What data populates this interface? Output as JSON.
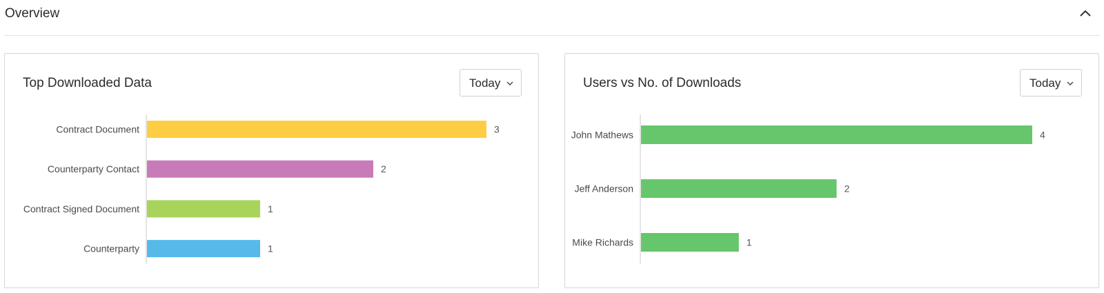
{
  "section": {
    "title": "Overview",
    "collapse_icon": "chevron-up-icon"
  },
  "cards": [
    {
      "title": "Top Downloaded Data",
      "period": "Today",
      "chart_data": {
        "type": "bar",
        "orientation": "horizontal",
        "categories": [
          "Contract Document",
          "Counterparty Contact",
          "Contract Signed Document",
          "Counterparty"
        ],
        "values": [
          3,
          2,
          1,
          1
        ],
        "colors": [
          "#ffcd44",
          "#c77bb8",
          "#a8d45c",
          "#56b9ea"
        ],
        "xlim": [
          0,
          3
        ],
        "grid": false,
        "legend": false
      }
    },
    {
      "title": "Users vs No. of Downloads",
      "period": "Today",
      "chart_data": {
        "type": "bar",
        "orientation": "horizontal",
        "categories": [
          "John Mathews",
          "Jeff Anderson",
          "Mike Richards"
        ],
        "values": [
          4,
          2,
          1
        ],
        "colors": [
          "#66c66c",
          "#66c66c",
          "#66c66c"
        ],
        "xlim": [
          0,
          4
        ],
        "grid": false,
        "legend": false
      }
    }
  ]
}
